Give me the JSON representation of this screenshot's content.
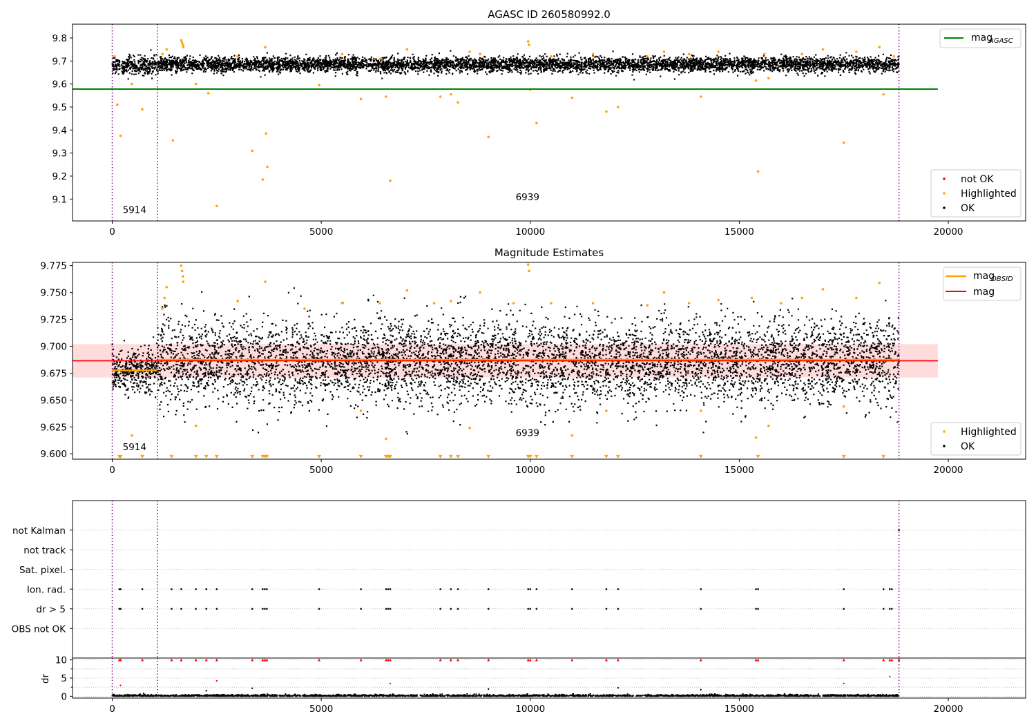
{
  "figure": {
    "title_top": "AGASC ID 260580992.0",
    "title_mid": "Magnitude Estimates"
  },
  "colors": {
    "ok": "#000000",
    "highlighted": "#FFA500",
    "not_ok": "#FF0000",
    "agasc_line": "#008000",
    "obsid_line": "#FFA500",
    "mag_line": "#FF0000",
    "mag_band": "#FFC0C0",
    "boundary_lines": "#800080",
    "grid": "#B0B0B0"
  },
  "legend_top_lines": {
    "main": "mag",
    "sub": "AGASC"
  },
  "legend_top_points": [
    "not OK",
    "Highlighted",
    "OK"
  ],
  "legend_mid_lines": {
    "obsid_main": "mag",
    "obsid_sub": "OBSID",
    "mag": "mag"
  },
  "legend_mid_points": [
    "Highlighted",
    "OK"
  ],
  "chart_data": [
    {
      "type": "scatter",
      "title": "AGASC ID 260580992.0",
      "xlim": [
        -950,
        21850
      ],
      "ylim": [
        9.005,
        9.86
      ],
      "xticks": [
        "0",
        "5000",
        "10000",
        "15000",
        "20000"
      ],
      "yticks": [
        "9.1",
        "9.2",
        "9.3",
        "9.4",
        "9.5",
        "9.6",
        "9.7",
        "9.8"
      ],
      "legend": [
        "mag AGASC",
        "not OK",
        "Highlighted",
        "OK"
      ],
      "legend_placement": [
        "top-right",
        "bottom-right"
      ],
      "mag_agasc": 9.578,
      "obsid_boundaries": [
        0,
        1080,
        18820
      ],
      "obsid_labels": [
        {
          "label": "5914",
          "x": 250,
          "y": 9.04
        },
        {
          "label": "6939",
          "x": 9650,
          "y": 9.095
        }
      ],
      "series": [
        {
          "name": "OK",
          "mean": 9.685,
          "spread": 0.045,
          "x_range": [
            0,
            18820
          ],
          "n_points": 6200
        },
        {
          "name": "Highlighted",
          "points": [
            [
              60,
              9.72
            ],
            [
              120,
              9.51
            ],
            [
              200,
              9.375
            ],
            [
              470,
              9.6
            ],
            [
              720,
              9.49
            ],
            [
              1200,
              9.73
            ],
            [
              1300,
              9.75
            ],
            [
              1450,
              9.355
            ],
            [
              1650,
              9.79
            ],
            [
              1670,
              9.78
            ],
            [
              1690,
              9.77
            ],
            [
              1700,
              9.76
            ],
            [
              2000,
              9.6
            ],
            [
              2300,
              9.56
            ],
            [
              2500,
              9.07
            ],
            [
              3350,
              9.31
            ],
            [
              3600,
              9.185
            ],
            [
              3680,
              9.385
            ],
            [
              3710,
              9.24
            ],
            [
              3660,
              9.76
            ],
            [
              4950,
              9.595
            ],
            [
              5950,
              9.535
            ],
            [
              6550,
              9.545
            ],
            [
              6650,
              9.18
            ],
            [
              7050,
              9.75
            ],
            [
              7850,
              9.545
            ],
            [
              8100,
              9.555
            ],
            [
              8270,
              9.52
            ],
            [
              8550,
              9.74
            ],
            [
              9000,
              9.37
            ],
            [
              9950,
              9.785
            ],
            [
              9970,
              9.77
            ],
            [
              10000,
              9.575
            ],
            [
              10150,
              9.43
            ],
            [
              11000,
              9.54
            ],
            [
              11820,
              9.48
            ],
            [
              12100,
              9.5
            ],
            [
              13200,
              9.74
            ],
            [
              14080,
              9.545
            ],
            [
              15400,
              9.615
            ],
            [
              15450,
              9.22
            ],
            [
              15700,
              9.625
            ],
            [
              17500,
              9.345
            ],
            [
              18350,
              9.76
            ],
            [
              18450,
              9.555
            ],
            [
              3000,
              9.72
            ],
            [
              5500,
              9.73
            ],
            [
              6400,
              9.71
            ],
            [
              8800,
              9.73
            ],
            [
              10500,
              9.72
            ],
            [
              11500,
              9.73
            ],
            [
              12800,
              9.72
            ],
            [
              13800,
              9.73
            ],
            [
              14500,
              9.74
            ],
            [
              15600,
              9.73
            ],
            [
              16500,
              9.73
            ],
            [
              17000,
              9.75
            ],
            [
              17800,
              9.74
            ],
            [
              18700,
              9.72
            ]
          ]
        }
      ]
    },
    {
      "type": "scatter",
      "title": "Magnitude Estimates",
      "xlim": [
        -950,
        21850
      ],
      "ylim": [
        9.595,
        9.778
      ],
      "xticks": [
        "0",
        "5000",
        "10000",
        "15000",
        "20000"
      ],
      "yticks": [
        "9.600",
        "9.625",
        "9.650",
        "9.675",
        "9.700",
        "9.725",
        "9.750",
        "9.775"
      ],
      "legend": [
        "mag OBSID",
        "mag",
        "Highlighted",
        "OK"
      ],
      "legend_placement": [
        "top-right",
        "bottom-right"
      ],
      "mag": 9.6865,
      "mag_band": [
        9.671,
        9.702
      ],
      "mag_obsid": [
        {
          "x": [
            0,
            1080
          ],
          "y": 9.6775
        },
        {
          "x": [
            1080,
            18820
          ],
          "y": 9.6875
        }
      ],
      "obsid_boundaries": [
        0,
        1080,
        18820
      ],
      "obsid_labels": [
        {
          "label": "5914",
          "x": 250,
          "y": 9.6035
        },
        {
          "label": "6939",
          "x": 9650,
          "y": 9.6165
        }
      ],
      "series": [
        {
          "name": "OK",
          "mean": 9.686,
          "spread": 0.02,
          "x_range": [
            0,
            18820
          ],
          "n_points": 6500
        },
        {
          "name": "Highlighted",
          "points": [
            [
              1200,
              9.735
            ],
            [
              1250,
              9.745
            ],
            [
              1300,
              9.755
            ],
            [
              1650,
              9.775
            ],
            [
              1670,
              9.77
            ],
            [
              1690,
              9.765
            ],
            [
              1700,
              9.76
            ],
            [
              2000,
              9.626
            ],
            [
              470,
              9.617
            ],
            [
              3660,
              9.76
            ],
            [
              5950,
              9.64
            ],
            [
              6550,
              9.614
            ],
            [
              7050,
              9.752
            ],
            [
              8550,
              9.624
            ],
            [
              9950,
              9.776
            ],
            [
              9970,
              9.77
            ],
            [
              11000,
              9.617
            ],
            [
              11820,
              9.64
            ],
            [
              14080,
              9.64
            ],
            [
              15400,
              9.615
            ],
            [
              15700,
              9.626
            ],
            [
              17000,
              9.753
            ],
            [
              17500,
              9.644
            ],
            [
              18350,
              9.759
            ],
            [
              3000,
              9.742
            ],
            [
              4600,
              9.735
            ],
            [
              5500,
              9.74
            ],
            [
              6400,
              9.74
            ],
            [
              7700,
              9.74
            ],
            [
              8100,
              9.742
            ],
            [
              8800,
              9.75
            ],
            [
              9600,
              9.74
            ],
            [
              10500,
              9.74
            ],
            [
              11500,
              9.74
            ],
            [
              12800,
              9.738
            ],
            [
              13200,
              9.75
            ],
            [
              13800,
              9.74
            ],
            [
              14500,
              9.743
            ],
            [
              15300,
              9.745
            ],
            [
              16000,
              9.74
            ],
            [
              16500,
              9.745
            ],
            [
              17800,
              9.745
            ]
          ]
        },
        {
          "name": "Highlighted (below axis)",
          "marker": "triangle-down",
          "y": 9.597,
          "x": [
            170,
            200,
            720,
            1420,
            2000,
            2250,
            2500,
            3350,
            3600,
            3650,
            3700,
            4950,
            5950,
            6550,
            6600,
            6650,
            7850,
            8100,
            8270,
            9000,
            9950,
            10000,
            10150,
            11000,
            11820,
            12100,
            14080,
            15450,
            17500,
            18450
          ]
        }
      ]
    },
    {
      "type": "scatter",
      "title": "",
      "xlim": [
        -950,
        21850
      ],
      "ylim": [
        -0.5,
        7.5
      ],
      "categories": [
        "not Kalman",
        "not track",
        "Sat. pixel.",
        "Ion. rad.",
        "dr > 5",
        "OBS not OK"
      ],
      "flag_events": {
        "Ion. rad.": [
          170,
          200,
          720,
          1420,
          1650,
          2000,
          2250,
          2500,
          3350,
          3600,
          3650,
          3700,
          4950,
          5950,
          6550,
          6600,
          6650,
          7850,
          8100,
          8270,
          9000,
          9950,
          10000,
          10150,
          11000,
          11820,
          12100,
          14080,
          15400,
          15450,
          17500,
          18450,
          18600,
          18650
        ],
        "dr > 5": [
          170,
          200,
          720,
          1420,
          1650,
          2000,
          2250,
          2500,
          3350,
          3600,
          3650,
          3700,
          4950,
          5950,
          6550,
          6600,
          6650,
          7850,
          8100,
          8270,
          9000,
          9950,
          10000,
          10150,
          11000,
          11820,
          12100,
          14080,
          15400,
          15450,
          17500,
          18450,
          18600,
          18650
        ],
        "not Kalman": [
          18820
        ],
        "not track": [],
        "Sat. pixel.": [],
        "OBS not OK": []
      },
      "obsid_boundaries": [
        0,
        1080,
        18820
      ]
    },
    {
      "type": "scatter",
      "title": "",
      "xlim": [
        -950,
        21850
      ],
      "ylim": [
        -0.5,
        10.5
      ],
      "ylabel": "dr",
      "xticks": [
        "0",
        "5000",
        "10000",
        "15000",
        "20000"
      ],
      "yticks": [
        "0",
        "5",
        "10"
      ],
      "dr_ok_max": 0.6,
      "clipped_at_10": [
        170,
        200,
        720,
        1420,
        1650,
        2000,
        2250,
        2500,
        3350,
        3600,
        3650,
        3700,
        4950,
        5950,
        6550,
        6600,
        6650,
        7850,
        8100,
        8270,
        9000,
        9950,
        10000,
        10150,
        11000,
        11820,
        12100,
        14080,
        15400,
        15450,
        17500,
        18450,
        18600,
        18650,
        18820
      ],
      "notable": [
        [
          200,
          3.0
        ],
        [
          2500,
          4.2
        ],
        [
          6650,
          3.5
        ],
        [
          17500,
          3.5
        ],
        [
          18600,
          5.4
        ],
        [
          3350,
          2.2
        ],
        [
          9000,
          2.0
        ],
        [
          12100,
          2.3
        ],
        [
          14080,
          1.8
        ],
        [
          2250,
          1.5
        ]
      ],
      "obsid_boundaries": [
        0,
        1080,
        18820
      ]
    }
  ]
}
